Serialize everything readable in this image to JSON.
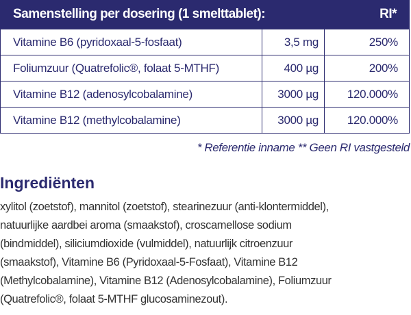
{
  "table": {
    "header": {
      "title": "Samenstelling per dosering (1 smelttablet):",
      "ri": "RI*"
    },
    "rows": [
      {
        "name": "Vitamine B6 (pyridoxaal-5-fosfaat)",
        "amount": "3,5 mg",
        "ri": "250%"
      },
      {
        "name": "Foliumzuur (Quatrefolic®, folaat 5-MTHF)",
        "amount": "400 µg",
        "ri": "200%"
      },
      {
        "name": "Vitamine B12 (adenosylcobalamine)",
        "amount": "3000 µg",
        "ri": "120.000%"
      },
      {
        "name": "Vitamine B12 (methylcobalamine)",
        "amount": "3000 µg",
        "ri": "120.000%"
      }
    ]
  },
  "footnote": "* Referentie inname  ** Geen RI vastgesteld",
  "ingredients": {
    "title": "Ingrediënten",
    "lines": [
      "xylitol (zoetstof), mannitol (zoetstof), stearinezuur (anti-klontermiddel),",
      "natuurlijke aardbei aroma (smaakstof), croscamellose sodium",
      "(bindmiddel), siliciumdioxide (vulmiddel), natuurlijk citroenzuur",
      "(smaakstof), Vitamine B6 (Pyridoxaal-5-Fosfaat), Vitamine B12",
      "(Methylcobalamine), Vitamine B12 (Adenosylcobalamine), Foliumzuur",
      "(Quatrefolic®, folaat 5-MTHF glucosaminezout)."
    ]
  },
  "colors": {
    "brand": "#2b2a6f",
    "text": "#333333"
  }
}
